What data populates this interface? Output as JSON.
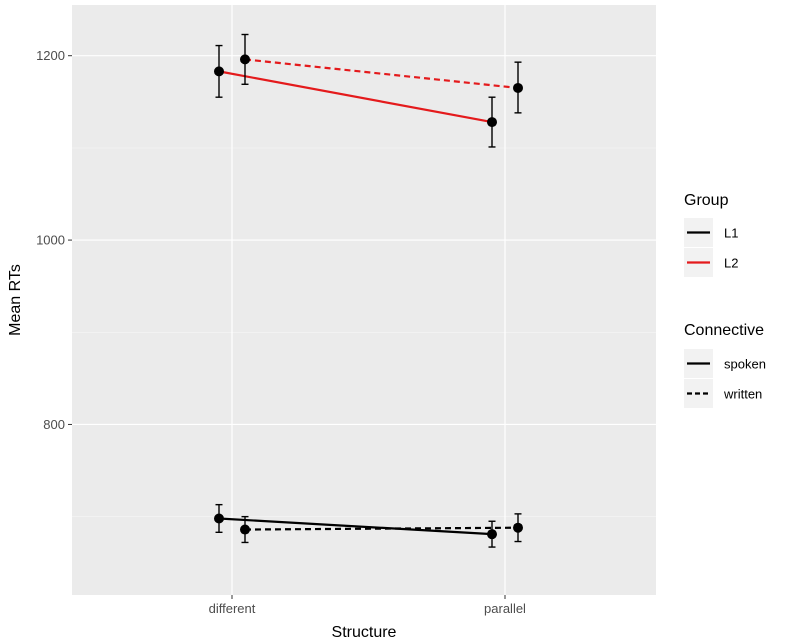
{
  "chart_data": {
    "type": "line",
    "xlabel": "Structure",
    "ylabel": "Mean RTs",
    "categories": [
      "different",
      "parallel"
    ],
    "ylim": [
      615,
      1255
    ],
    "yticks": [
      800,
      1000,
      1200
    ],
    "grid": true,
    "legend_position": "right",
    "groups_legend": {
      "title": "Group",
      "entries": [
        {
          "label": "L1",
          "color": "#000000"
        },
        {
          "label": "L2",
          "color": "#e41a1c"
        }
      ]
    },
    "connective_legend": {
      "title": "Connective",
      "entries": [
        {
          "label": "spoken",
          "linetype": "solid"
        },
        {
          "label": "written",
          "linetype": "dashed"
        }
      ]
    },
    "series": [
      {
        "group": "L1",
        "connective": "spoken",
        "color": "#000000",
        "dash": false,
        "offset": -1,
        "values": [
          698,
          681
        ],
        "err_low": [
          683,
          667
        ],
        "err_high": [
          713,
          695
        ]
      },
      {
        "group": "L1",
        "connective": "written",
        "color": "#000000",
        "dash": true,
        "offset": 1,
        "values": [
          686,
          688
        ],
        "err_low": [
          672,
          673
        ],
        "err_high": [
          700,
          703
        ]
      },
      {
        "group": "L2",
        "connective": "spoken",
        "color": "#e41a1c",
        "dash": false,
        "offset": -1,
        "values": [
          1183,
          1128
        ],
        "err_low": [
          1155,
          1101
        ],
        "err_high": [
          1211,
          1155
        ]
      },
      {
        "group": "L2",
        "connective": "written",
        "color": "#e41a1c",
        "dash": true,
        "offset": 1,
        "values": [
          1196,
          1165
        ],
        "err_low": [
          1169,
          1138
        ],
        "err_high": [
          1223,
          1193
        ]
      }
    ]
  }
}
